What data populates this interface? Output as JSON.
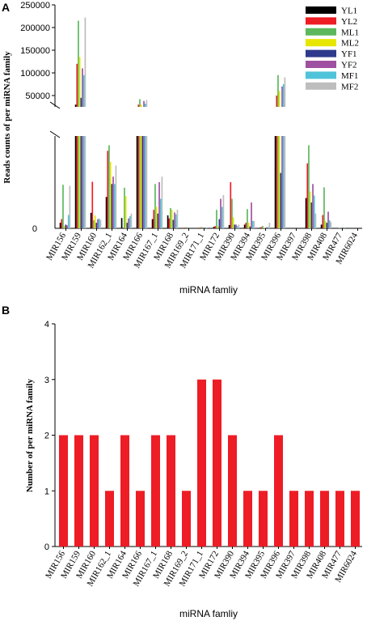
{
  "chart_data": [
    {
      "type": "bar",
      "panel_label": "A",
      "ylabel": "Reads counts of per miRNA family",
      "xlabel": "miRNA famliy",
      "categories": [
        "MIR156",
        "MIR159",
        "MIR160",
        "MIR162_1",
        "MIR164",
        "MIR166",
        "MIR167_1",
        "MIR168",
        "MIR169_2",
        "MIR171_1",
        "MIR172",
        "MIR390",
        "MIR394",
        "MIR395",
        "MIR396",
        "MIR397",
        "MIR398",
        "MIR408",
        "MIR477",
        "MIR6024"
      ],
      "yticks": [
        "50000",
        "100000",
        "150000",
        "200000",
        "250000"
      ],
      "y_zero_label": "0",
      "lower_range": [
        0,
        25000
      ],
      "upper_range": [
        25000,
        250000
      ],
      "axis_break": true,
      "series": [
        {
          "name": "YL1",
          "color": "#000000",
          "values": [
            1500,
            30000,
            4200,
            8500,
            2800,
            25000,
            2500,
            3500,
            0,
            0,
            400,
            900,
            1000,
            150,
            25000,
            0,
            8200,
            1000,
            0,
            0
          ]
        },
        {
          "name": "YL2",
          "color": "#ee1c25",
          "values": [
            2500,
            120000,
            12600,
            21000,
            0,
            30000,
            5000,
            2700,
            200,
            200,
            600,
            12500,
            1500,
            350,
            50000,
            0,
            17600,
            3600,
            0,
            0
          ]
        },
        {
          "name": "ML1",
          "color": "#5cb85c",
          "values": [
            11800,
            215000,
            2200,
            22500,
            11000,
            42000,
            12000,
            5500,
            300,
            350,
            5000,
            8000,
            5200,
            650,
            95000,
            0,
            22500,
            11100,
            100,
            0
          ]
        },
        {
          "name": "ML2",
          "color": "#e6e600",
          "values": [
            600,
            135000,
            3500,
            18000,
            8700,
            30000,
            5800,
            5000,
            0,
            0,
            500,
            3000,
            1500,
            200,
            60000,
            0,
            10000,
            2000,
            0,
            0
          ]
        },
        {
          "name": "YF1",
          "color": "#2e3a8c",
          "values": [
            1000,
            45000,
            1500,
            12000,
            1500,
            25000,
            4000,
            2300,
            0,
            0,
            2500,
            1000,
            500,
            100,
            15000,
            0,
            7000,
            1500,
            0,
            0
          ]
        },
        {
          "name": "YF2",
          "color": "#a050a0",
          "values": [
            800,
            110000,
            2500,
            14000,
            2700,
            38000,
            12500,
            4300,
            0,
            0,
            8000,
            1000,
            7000,
            300,
            70000,
            0,
            12000,
            4500,
            0,
            0
          ]
        },
        {
          "name": "MF1",
          "color": "#4fc3d9",
          "values": [
            3600,
            95000,
            2600,
            12000,
            3300,
            32000,
            8000,
            3800,
            0,
            200,
            5800,
            600,
            2000,
            350,
            75000,
            0,
            8900,
            2200,
            50,
            0
          ]
        },
        {
          "name": "MF2",
          "color": "#bdbdbd",
          "values": [
            11500,
            222000,
            2300,
            17000,
            4000,
            40000,
            14000,
            5000,
            0,
            0,
            9000,
            1000,
            2000,
            1500,
            90000,
            0,
            4000,
            1700,
            0,
            0
          ]
        }
      ],
      "legend_position": "top-right",
      "grid": false
    },
    {
      "type": "bar",
      "panel_label": "B",
      "ylabel": "Number of per miRNA family",
      "xlabel": "miRNA famliy",
      "categories": [
        "MIR156",
        "MIR159",
        "MIR160",
        "MIR162_1",
        "MIR164",
        "MIR166",
        "MIR167_1",
        "MIR168",
        "MIR169_2",
        "MIR171_1",
        "MIR172",
        "MIR390",
        "MIR394",
        "MIR395",
        "MIR396",
        "MIR397",
        "MIR398",
        "MIR408",
        "MIR477",
        "MIR6024"
      ],
      "values": [
        2,
        2,
        2,
        1,
        2,
        1,
        2,
        2,
        1,
        3,
        3,
        2,
        1,
        1,
        2,
        1,
        1,
        1,
        1,
        1
      ],
      "yticks": [
        "0",
        "1",
        "2",
        "3",
        "4"
      ],
      "ylim": [
        0,
        4
      ],
      "bar_color": "#ee1c25",
      "grid": false
    }
  ]
}
